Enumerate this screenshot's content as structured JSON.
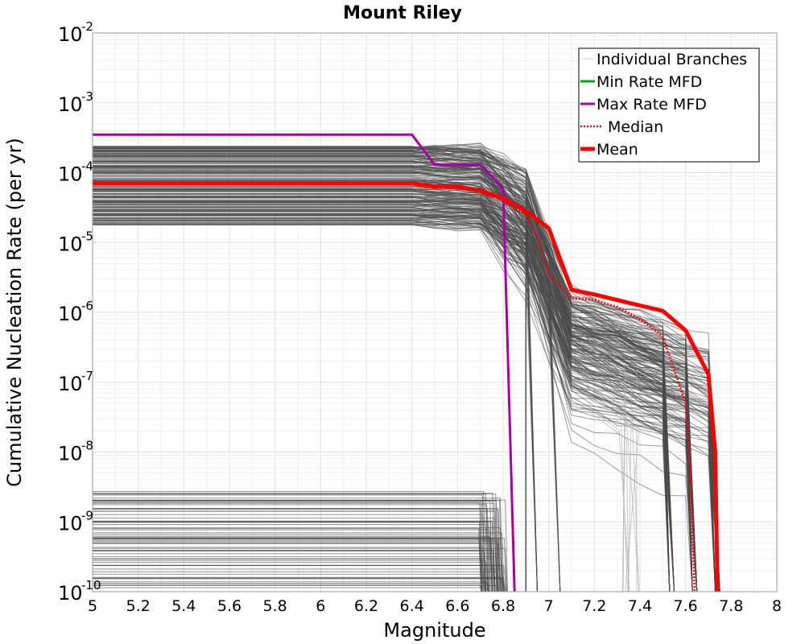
{
  "chart_data": {
    "type": "line",
    "title": "Mount Riley",
    "xlabel": "Magnitude",
    "ylabel": "Cumulative Nucleation Rate (per yr)",
    "xlim": [
      5,
      8
    ],
    "ylim_log10": [
      -10,
      -2
    ],
    "y_scale": "log",
    "grid": true,
    "legend_position": "top-right",
    "x_ticks": [
      "5",
      "5.2",
      "5.4",
      "5.6",
      "5.8",
      "6",
      "6.2",
      "6.4",
      "6.6",
      "6.8",
      "7",
      "7.2",
      "7.4",
      "7.6",
      "7.8",
      "8"
    ],
    "y_ticks": [
      {
        "base": "10",
        "exp": "-2",
        "value": -2
      },
      {
        "base": "10",
        "exp": "-3",
        "value": -3
      },
      {
        "base": "10",
        "exp": "-4",
        "value": -4
      },
      {
        "base": "10",
        "exp": "-5",
        "value": -5
      },
      {
        "base": "10",
        "exp": "-6",
        "value": -6
      },
      {
        "base": "10",
        "exp": "-7",
        "value": -7
      },
      {
        "base": "10",
        "exp": "-8",
        "value": -8
      },
      {
        "base": "10",
        "exp": "-9",
        "value": -9
      },
      {
        "base": "10",
        "exp": "-10",
        "value": -10
      }
    ],
    "legend": [
      {
        "label": "Individual Branches",
        "color": "#c8c8c8",
        "style": "thin"
      },
      {
        "label": "Min Rate MFD",
        "color": "#00aa00",
        "style": "solid"
      },
      {
        "label": "Max Rate MFD",
        "color": "#aa00aa",
        "style": "solid"
      },
      {
        "label": "Median",
        "color": "#ff0000",
        "style": "dotted"
      },
      {
        "label": "Mean",
        "color": "#ff0000",
        "style": "thick"
      }
    ],
    "series": [
      {
        "name": "Max Rate MFD",
        "color": "#aa00aa",
        "x": [
          5.0,
          6.4,
          6.5,
          6.7,
          6.8,
          6.85
        ],
        "y": [
          0.00035,
          0.00035,
          0.00013,
          0.00013,
          6e-05,
          1e-10
        ]
      },
      {
        "name": "Median",
        "color": "#ff0000",
        "x": [
          5.0,
          6.4,
          6.5,
          6.6,
          6.7,
          6.8,
          6.9,
          6.95,
          7.0,
          7.1,
          7.2,
          7.3,
          7.4,
          7.5,
          7.55,
          7.6,
          7.62,
          7.64
        ],
        "y": [
          7e-05,
          7e-05,
          6e-05,
          6e-05,
          5.5e-05,
          4e-05,
          2.5e-05,
          1.2e-05,
          3.5e-06,
          1.6e-06,
          1.5e-06,
          1.2e-06,
          8e-07,
          4.5e-07,
          1.5e-07,
          5e-08,
          5e-09,
          1e-10
        ]
      },
      {
        "name": "Mean",
        "color": "#ff0000",
        "x": [
          5.0,
          6.4,
          6.5,
          6.6,
          6.7,
          6.8,
          6.9,
          7.0,
          7.1,
          7.2,
          7.3,
          7.4,
          7.5,
          7.6,
          7.7,
          7.73,
          7.74
        ],
        "y": [
          7e-05,
          7e-05,
          6.3e-05,
          6.3e-05,
          5.5e-05,
          4.3e-05,
          2.8e-05,
          1.6e-05,
          2.1e-06,
          1.8e-06,
          1.5e-06,
          1.25e-06,
          1.05e-06,
          5.5e-07,
          1.3e-07,
          1e-08,
          1e-10
        ]
      }
    ]
  }
}
